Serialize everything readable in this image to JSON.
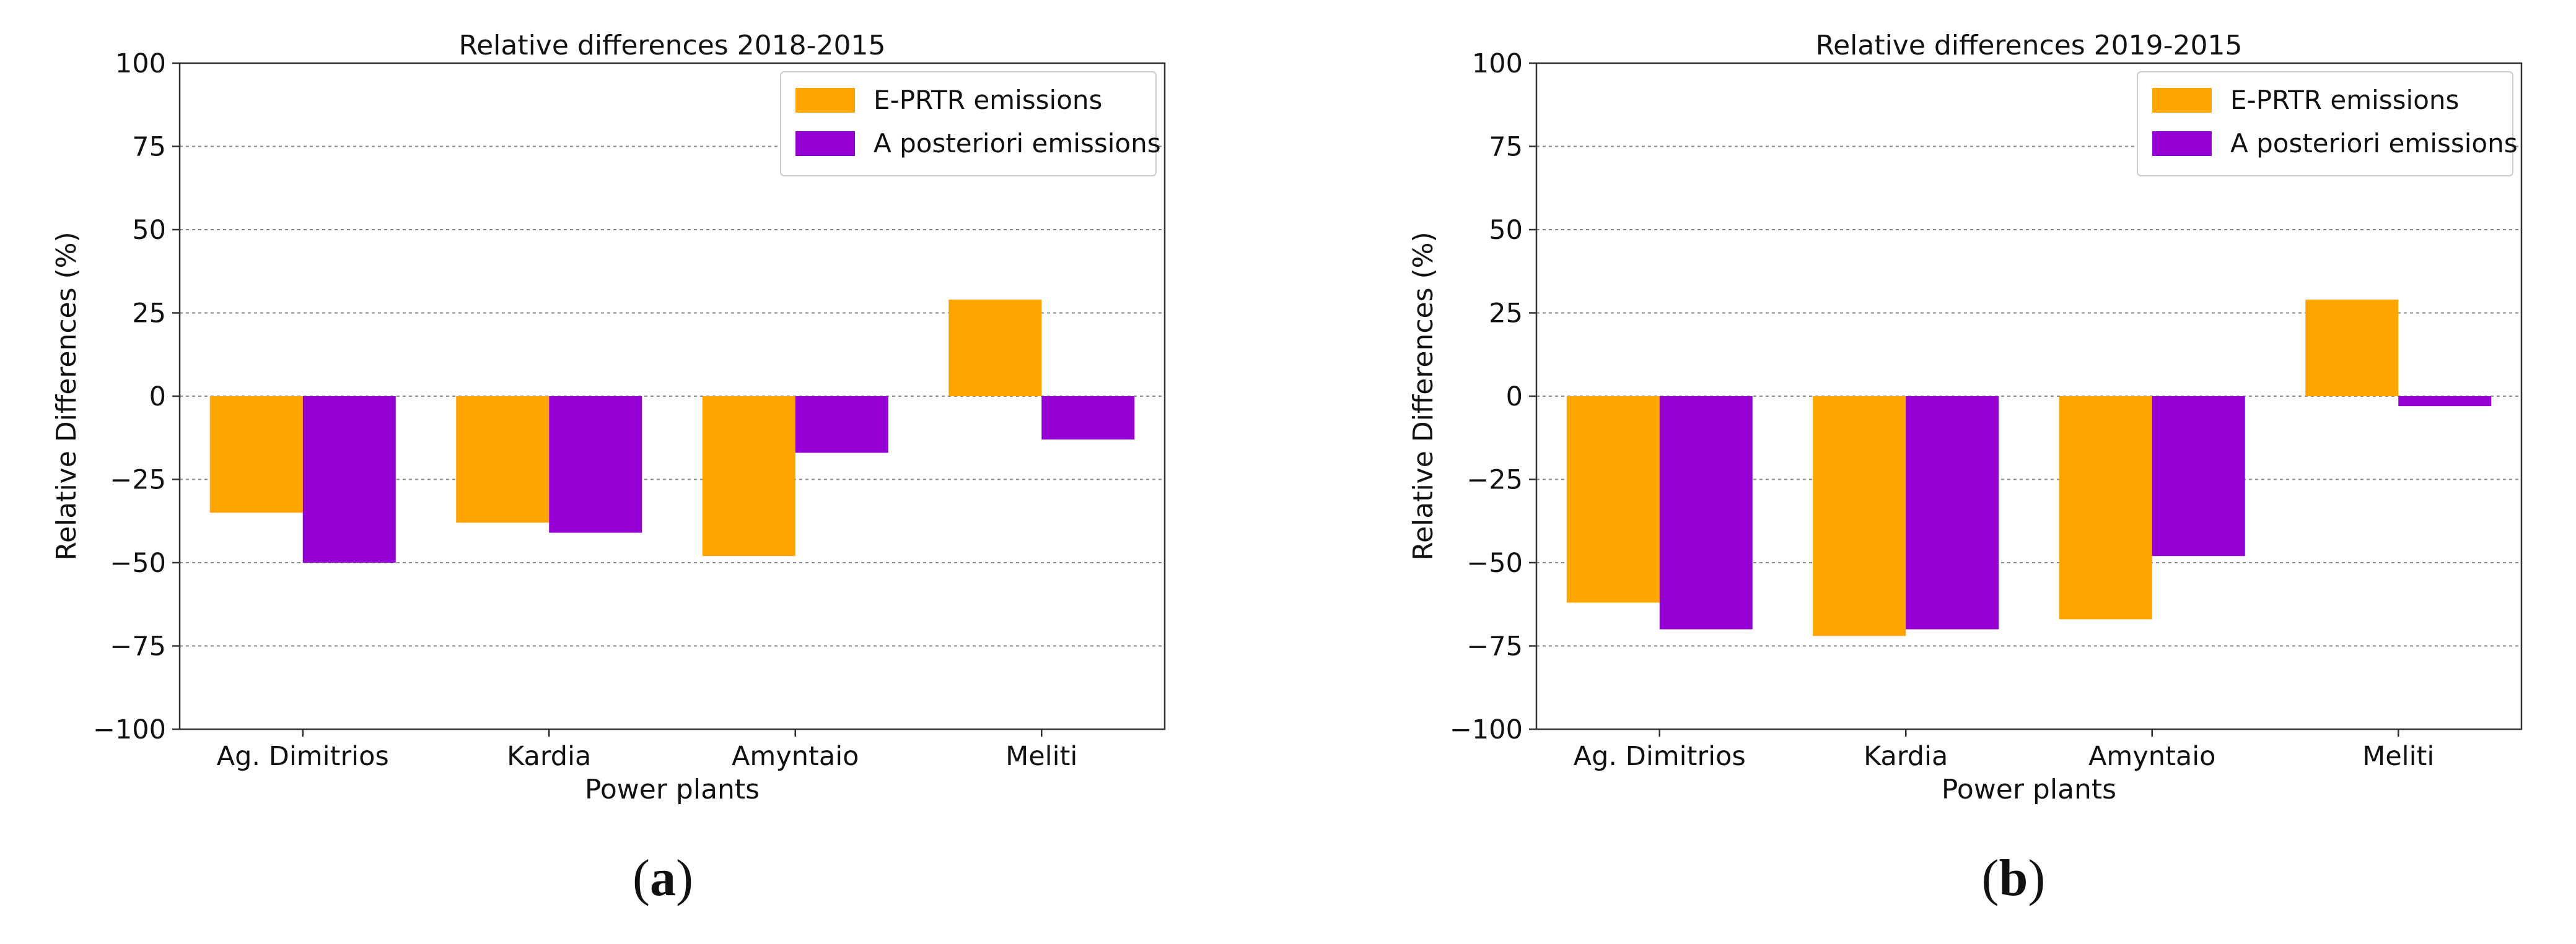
{
  "colors": {
    "eprtr": "#FFA500",
    "aposteriori": "#9400D3",
    "grid": "#888888",
    "axis": "#333333"
  },
  "panels": [
    {
      "id": "a",
      "caption_open": "(",
      "caption_letter": "a",
      "caption_close": ")"
    },
    {
      "id": "b",
      "caption_open": "(",
      "caption_letter": "b",
      "caption_close": ")"
    }
  ],
  "chart_data": [
    {
      "type": "bar",
      "title": "Relative differences 2018-2015",
      "xlabel": "Power plants",
      "ylabel": "Relative Differences (%)",
      "ylim": [
        -100,
        100
      ],
      "yticks": [
        -100,
        -75,
        -50,
        -25,
        0,
        25,
        50,
        75,
        100
      ],
      "ytick_labels": [
        "−100",
        "−75",
        "−50",
        "−25",
        "0",
        "25",
        "50",
        "75",
        "100"
      ],
      "grid": "horizontal dashed",
      "legend_position": "top-right",
      "categories": [
        "Ag. Dimitrios",
        "Kardia",
        "Amyntaio",
        "Meliti"
      ],
      "series": [
        {
          "name": "E-PRTR emissions",
          "color_key": "eprtr",
          "values": [
            -35,
            -38,
            -48,
            29
          ]
        },
        {
          "name": "A posteriori emissions",
          "color_key": "aposteriori",
          "values": [
            -50,
            -41,
            -17,
            -13
          ]
        }
      ]
    },
    {
      "type": "bar",
      "title": "Relative differences 2019-2015",
      "xlabel": "Power plants",
      "ylabel": "Relative Differences (%)",
      "ylim": [
        -100,
        100
      ],
      "yticks": [
        -100,
        -75,
        -50,
        -25,
        0,
        25,
        50,
        75,
        100
      ],
      "ytick_labels": [
        "−100",
        "−75",
        "−50",
        "−25",
        "0",
        "25",
        "50",
        "75",
        "100"
      ],
      "grid": "horizontal dashed",
      "legend_position": "top-right",
      "categories": [
        "Ag. Dimitrios",
        "Kardia",
        "Amyntaio",
        "Meliti"
      ],
      "series": [
        {
          "name": "E-PRTR emissions",
          "color_key": "eprtr",
          "values": [
            -62,
            -72,
            -67,
            29
          ]
        },
        {
          "name": "A posteriori emissions",
          "color_key": "aposteriori",
          "values": [
            -70,
            -70,
            -48,
            -3
          ]
        }
      ]
    }
  ]
}
